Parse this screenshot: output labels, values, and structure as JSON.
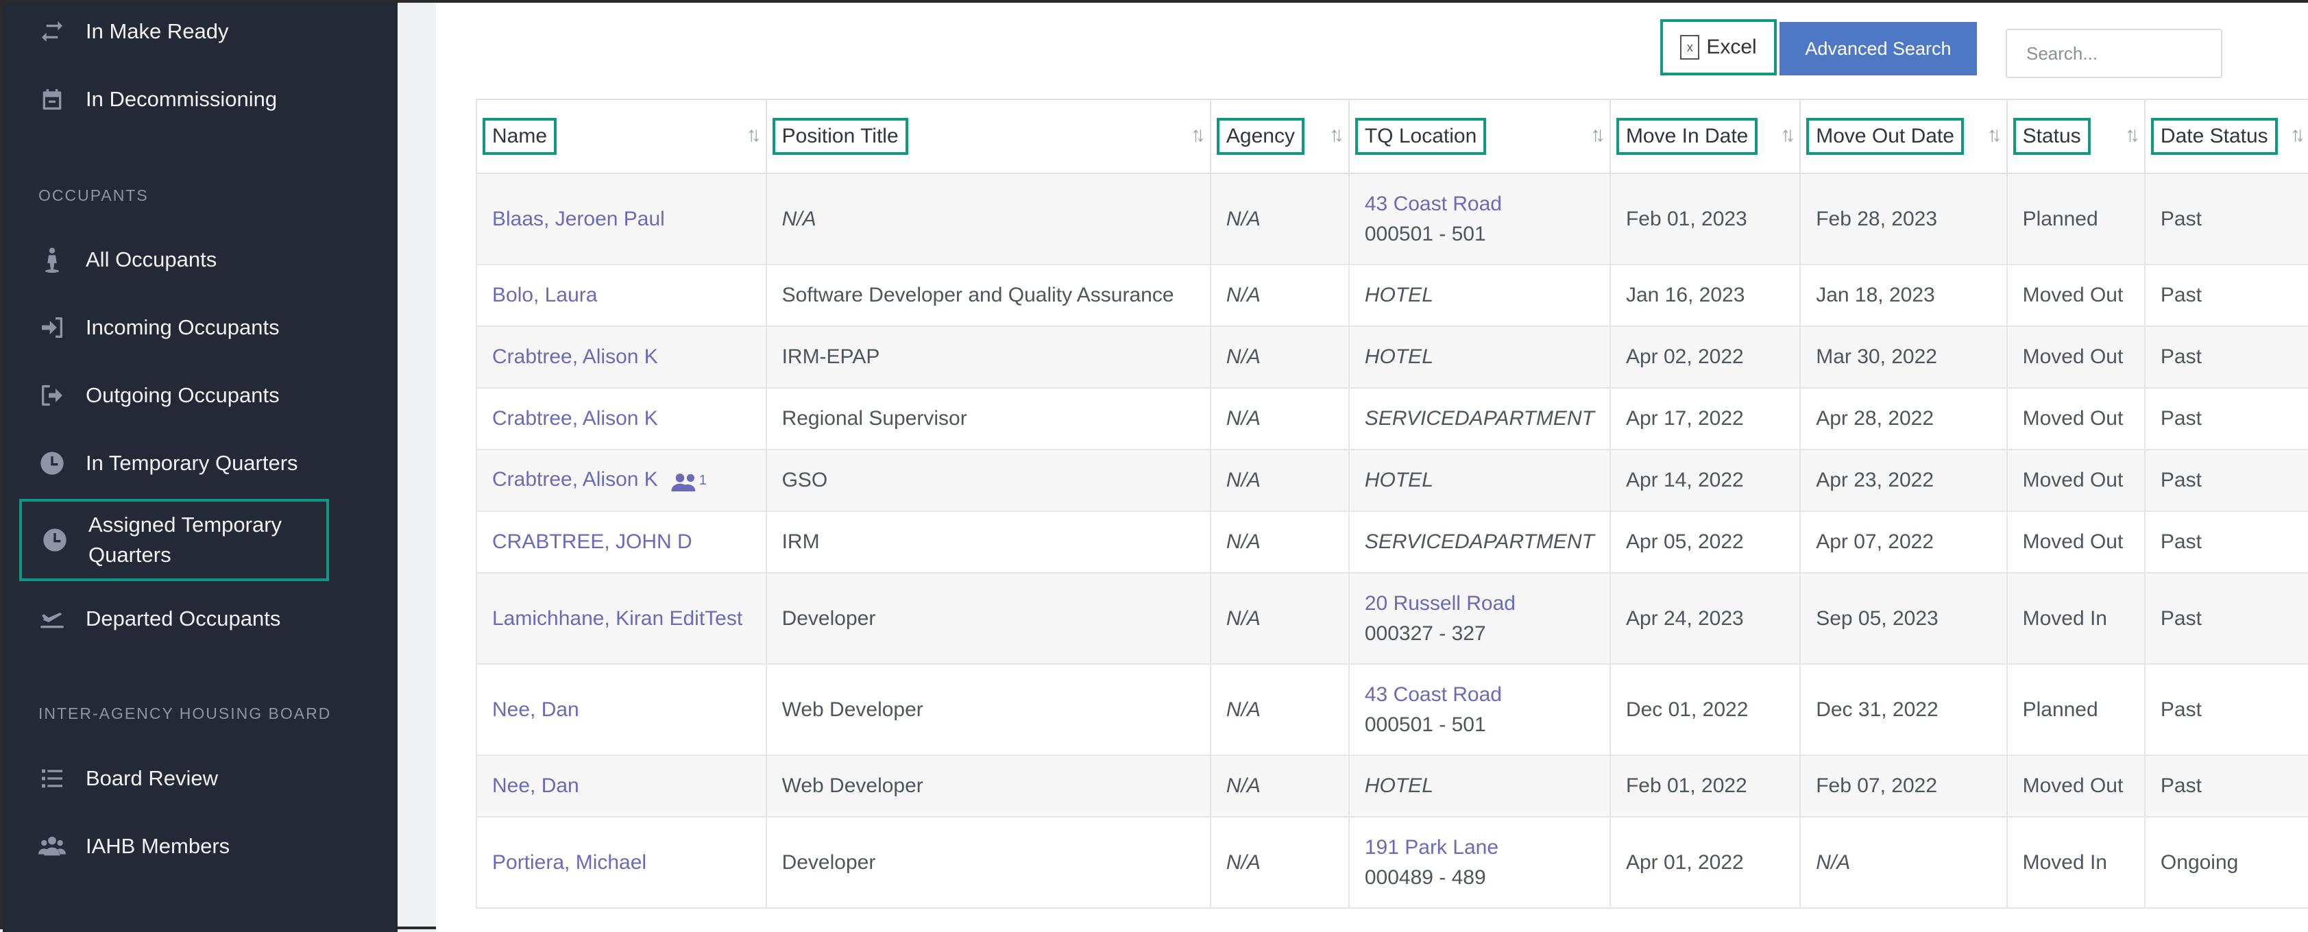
{
  "sidebar": {
    "items_top": [
      {
        "label": "In Make Ready",
        "icon": "refresh-icon"
      },
      {
        "label": "In Decommissioning",
        "icon": "calendar-icon"
      }
    ],
    "occupants_title": "OCCUPANTS",
    "occupants_items": [
      {
        "label": "All Occupants",
        "icon": "person-icon"
      },
      {
        "label": "Incoming Occupants",
        "icon": "sign-in-icon"
      },
      {
        "label": "Outgoing Occupants",
        "icon": "sign-out-icon"
      },
      {
        "label": "In Temporary Quarters",
        "icon": "clock-icon"
      },
      {
        "label": "Assigned Temporary Quarters",
        "icon": "clock-icon"
      },
      {
        "label": "Departed Occupants",
        "icon": "plane-icon"
      }
    ],
    "board_title": "INTER-AGENCY HOUSING BOARD",
    "board_items": [
      {
        "label": "Board Review",
        "icon": "list-icon"
      },
      {
        "label": "IAHB Members",
        "icon": "users-icon"
      }
    ]
  },
  "toolbar": {
    "excel_label": "Excel",
    "advanced_search_label": "Advanced Search",
    "search_placeholder": "Search..."
  },
  "table": {
    "columns": [
      "Name",
      "Position Title",
      "Agency",
      "TQ Location",
      "Move In Date",
      "Move Out Date",
      "Status",
      "Date Status"
    ],
    "rows": [
      {
        "name": "Blaas, Jeroen Paul",
        "position": "N/A",
        "agency": "N/A",
        "tq_line1": "43 Coast Road",
        "tq_line2": "000501 - 501",
        "move_in": "Feb 01, 2023",
        "move_out": "Feb 28, 2023",
        "status": "Planned",
        "date_status": "Past"
      },
      {
        "name": "Bolo, Laura",
        "position": "Software Developer and Quality Assurance",
        "agency": "N/A",
        "tq_line1": "HOTEL",
        "tq_line2": "",
        "move_in": "Jan 16, 2023",
        "move_out": "Jan 18, 2023",
        "status": "Moved Out",
        "date_status": "Past"
      },
      {
        "name": "Crabtree, Alison K",
        "position": "IRM-EPAP",
        "agency": "N/A",
        "tq_line1": "HOTEL",
        "tq_line2": "",
        "move_in": "Apr 02, 2022",
        "move_out": "Mar 30, 2022",
        "status": "Moved Out",
        "date_status": "Past"
      },
      {
        "name": "Crabtree, Alison K",
        "position": "Regional Supervisor",
        "agency": "N/A",
        "tq_line1": "SERVICEDAPARTMENT",
        "tq_line2": "",
        "move_in": "Apr 17, 2022",
        "move_out": "Apr 28, 2022",
        "status": "Moved Out",
        "date_status": "Past"
      },
      {
        "name": "Crabtree, Alison K",
        "group_count": "1",
        "position": "GSO",
        "agency": "N/A",
        "tq_line1": "HOTEL",
        "tq_line2": "",
        "move_in": "Apr 14, 2022",
        "move_out": "Apr 23, 2022",
        "status": "Moved Out",
        "date_status": "Past"
      },
      {
        "name": "CRABTREE, JOHN D",
        "position": "IRM",
        "agency": "N/A",
        "tq_line1": "SERVICEDAPARTMENT",
        "tq_line2": "",
        "move_in": "Apr 05, 2022",
        "move_out": "Apr 07, 2022",
        "status": "Moved Out",
        "date_status": "Past"
      },
      {
        "name": "Lamichhane, Kiran EditTest",
        "position": "Developer",
        "agency": "N/A",
        "tq_line1": "20 Russell Road",
        "tq_line2": "000327 - 327",
        "move_in": "Apr 24, 2023",
        "move_out": "Sep 05, 2023",
        "status": "Moved In",
        "date_status": "Past"
      },
      {
        "name": "Nee, Dan",
        "position": "Web Developer",
        "agency": "N/A",
        "tq_line1": "43 Coast Road",
        "tq_line2": "000501 - 501",
        "move_in": "Dec 01, 2022",
        "move_out": "Dec 31, 2022",
        "status": "Planned",
        "date_status": "Past"
      },
      {
        "name": "Nee, Dan",
        "position": "Web Developer",
        "agency": "N/A",
        "tq_line1": "HOTEL",
        "tq_line2": "",
        "move_in": "Feb 01, 2022",
        "move_out": "Feb 07, 2022",
        "status": "Moved Out",
        "date_status": "Past"
      },
      {
        "name": "Portiera, Michael",
        "position": "Developer",
        "agency": "N/A",
        "tq_line1": "191 Park Lane",
        "tq_line2": "000489 - 489",
        "move_in": "Apr 01, 2022",
        "move_out": "N/A",
        "status": "Moved In",
        "date_status": "Ongoing"
      }
    ]
  },
  "colors": {
    "accent_outline": "#0f9882",
    "link": "#6a6ab8",
    "button_blue": "#4f78c4",
    "sidebar_bg": "#242938"
  }
}
